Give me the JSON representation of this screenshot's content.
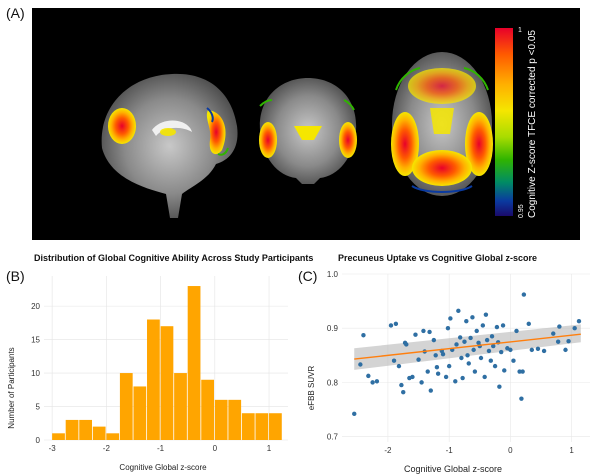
{
  "figure": {
    "panel_a_label": "(A)",
    "panel_b_label": "(B)",
    "panel_c_label": "(C)"
  },
  "colorbar": {
    "label": "Cognitive Z-score TFCE corrected p <0.05",
    "max_tick": "1",
    "min_tick": "0.95",
    "colors": [
      "#e8002a",
      "#ff5a00",
      "#ffb000",
      "#f5e600",
      "#a8dc00",
      "#30b400",
      "#008c64",
      "#0a3aa0",
      "#1a0a6a"
    ]
  },
  "chart_data": [
    {
      "type": "bar",
      "title": "Distribution of Global Cognitive Ability Across Study Participants",
      "xlabel": "Cognitive Global z-score",
      "ylabel": "Number of Participants",
      "bar_color": "#ffa500",
      "bins": [
        {
          "x0": -3.0,
          "x1": -2.75,
          "count": 1
        },
        {
          "x0": -2.75,
          "x1": -2.5,
          "count": 3
        },
        {
          "x0": -2.5,
          "x1": -2.25,
          "count": 3
        },
        {
          "x0": -2.25,
          "x1": -2.0,
          "count": 2
        },
        {
          "x0": -2.0,
          "x1": -1.75,
          "count": 1
        },
        {
          "x0": -1.75,
          "x1": -1.5,
          "count": 10
        },
        {
          "x0": -1.5,
          "x1": -1.25,
          "count": 8
        },
        {
          "x0": -1.25,
          "x1": -1.0,
          "count": 18
        },
        {
          "x0": -1.0,
          "x1": -0.75,
          "count": 17
        },
        {
          "x0": -0.75,
          "x1": -0.5,
          "count": 10
        },
        {
          "x0": -0.5,
          "x1": -0.25,
          "count": 23
        },
        {
          "x0": -0.25,
          "x1": 0.0,
          "count": 9
        },
        {
          "x0": 0.0,
          "x1": 0.25,
          "count": 6
        },
        {
          "x0": 0.25,
          "x1": 0.5,
          "count": 6
        },
        {
          "x0": 0.5,
          "x1": 0.75,
          "count": 4
        },
        {
          "x0": 0.75,
          "x1": 1.0,
          "count": 4
        },
        {
          "x0": 1.0,
          "x1": 1.25,
          "count": 4
        }
      ],
      "xlim": [
        -3.15,
        1.35
      ],
      "ylim": [
        0,
        24.5
      ],
      "xticks": [
        -3,
        -2,
        -1,
        0,
        1
      ],
      "yticks": [
        0,
        5,
        10,
        15,
        20
      ],
      "grid": true
    },
    {
      "type": "scatter",
      "title": "Precuneus Uptake vs Cognitive Global z-score",
      "xlabel": "Cognitive Global z-score",
      "ylabel": "eFBB SUVR",
      "point_color": "#2f6fa3",
      "line_color": "#ff7f0e",
      "band_color": "#b8b8b8",
      "xlim": [
        -2.75,
        1.3
      ],
      "ylim": [
        0.69,
        1.0
      ],
      "xticks": [
        -2,
        -1,
        0,
        1
      ],
      "yticks": [
        0.7,
        0.8,
        0.9,
        1.0
      ],
      "regression": {
        "x0": -2.55,
        "y0": 0.843,
        "x1": 1.15,
        "y1": 0.889
      },
      "band": {
        "lower": [
          0.823,
          0.874
        ],
        "upper": [
          0.863,
          0.907
        ]
      },
      "grid": true,
      "points": [
        [
          -2.55,
          0.742
        ],
        [
          -2.45,
          0.833
        ],
        [
          -2.4,
          0.887
        ],
        [
          -2.32,
          0.812
        ],
        [
          -2.25,
          0.8
        ],
        [
          -2.18,
          0.802
        ],
        [
          -1.95,
          0.905
        ],
        [
          -1.9,
          0.84
        ],
        [
          -1.87,
          0.908
        ],
        [
          -1.82,
          0.83
        ],
        [
          -1.78,
          0.795
        ],
        [
          -1.75,
          0.782
        ],
        [
          -1.72,
          0.873
        ],
        [
          -1.7,
          0.87
        ],
        [
          -1.65,
          0.808
        ],
        [
          -1.6,
          0.81
        ],
        [
          -1.55,
          0.888
        ],
        [
          -1.5,
          0.842
        ],
        [
          -1.45,
          0.8
        ],
        [
          -1.42,
          0.895
        ],
        [
          -1.4,
          0.857
        ],
        [
          -1.35,
          0.82
        ],
        [
          -1.32,
          0.893
        ],
        [
          -1.3,
          0.785
        ],
        [
          -1.25,
          0.878
        ],
        [
          -1.22,
          0.85
        ],
        [
          -1.2,
          0.828
        ],
        [
          -1.18,
          0.816
        ],
        [
          -1.12,
          0.858
        ],
        [
          -1.1,
          0.852
        ],
        [
          -1.05,
          0.81
        ],
        [
          -1.02,
          0.9
        ],
        [
          -1.0,
          0.83
        ],
        [
          -0.98,
          0.918
        ],
        [
          -0.95,
          0.86
        ],
        [
          -0.9,
          0.802
        ],
        [
          -0.88,
          0.87
        ],
        [
          -0.85,
          0.932
        ],
        [
          -0.82,
          0.883
        ],
        [
          -0.8,
          0.845
        ],
        [
          -0.78,
          0.808
        ],
        [
          -0.75,
          0.875
        ],
        [
          -0.72,
          0.913
        ],
        [
          -0.7,
          0.85
        ],
        [
          -0.68,
          0.835
        ],
        [
          -0.65,
          0.882
        ],
        [
          -0.62,
          0.92
        ],
        [
          -0.6,
          0.86
        ],
        [
          -0.58,
          0.82
        ],
        [
          -0.55,
          0.895
        ],
        [
          -0.52,
          0.873
        ],
        [
          -0.5,
          0.867
        ],
        [
          -0.48,
          0.845
        ],
        [
          -0.45,
          0.905
        ],
        [
          -0.42,
          0.81
        ],
        [
          -0.4,
          0.925
        ],
        [
          -0.38,
          0.878
        ],
        [
          -0.35,
          0.858
        ],
        [
          -0.32,
          0.84
        ],
        [
          -0.3,
          0.885
        ],
        [
          -0.28,
          0.867
        ],
        [
          -0.25,
          0.83
        ],
        [
          -0.22,
          0.902
        ],
        [
          -0.2,
          0.874
        ],
        [
          -0.18,
          0.792
        ],
        [
          -0.15,
          0.856
        ],
        [
          -0.12,
          0.905
        ],
        [
          -0.1,
          0.822
        ],
        [
          -0.05,
          0.863
        ],
        [
          0.0,
          0.86
        ],
        [
          0.05,
          0.84
        ],
        [
          0.1,
          0.895
        ],
        [
          0.15,
          0.82
        ],
        [
          0.2,
          0.82
        ],
        [
          0.22,
          0.962
        ],
        [
          0.3,
          0.908
        ],
        [
          0.35,
          0.86
        ],
        [
          0.45,
          0.862
        ],
        [
          0.55,
          0.858
        ],
        [
          0.7,
          0.89
        ],
        [
          0.78,
          0.875
        ],
        [
          0.8,
          0.903
        ],
        [
          0.9,
          0.86
        ],
        [
          1.05,
          0.9
        ],
        [
          1.12,
          0.913
        ],
        [
          0.18,
          0.77
        ],
        [
          0.95,
          0.876
        ]
      ]
    }
  ]
}
